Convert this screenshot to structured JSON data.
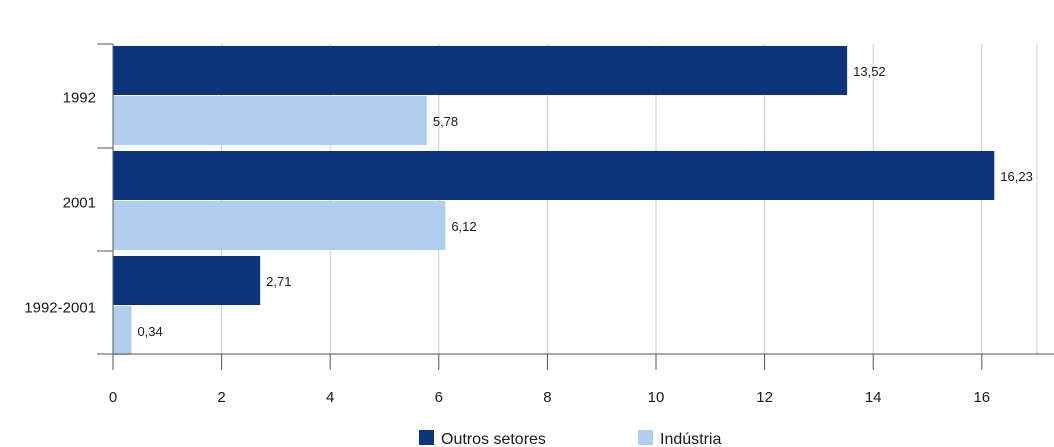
{
  "chart_data": {
    "type": "bar",
    "orientation": "horizontal",
    "categories": [
      "1992",
      "2001",
      "1992-2001"
    ],
    "series": [
      {
        "name": "Outros setores",
        "values": [
          13.52,
          16.23,
          2.71
        ],
        "labels": [
          "13,52",
          "16,23",
          "2,71"
        ],
        "color": "#0b347a"
      },
      {
        "name": "Indústria",
        "values": [
          5.78,
          6.12,
          0.34
        ],
        "labels": [
          "5,78",
          "6,12",
          "0,34"
        ],
        "color": "#b0cfee"
      }
    ],
    "xlim": [
      0,
      17
    ],
    "xticks": [
      0,
      2,
      4,
      6,
      8,
      10,
      12,
      14,
      16
    ],
    "grid": true,
    "legend": "bottom-center"
  }
}
